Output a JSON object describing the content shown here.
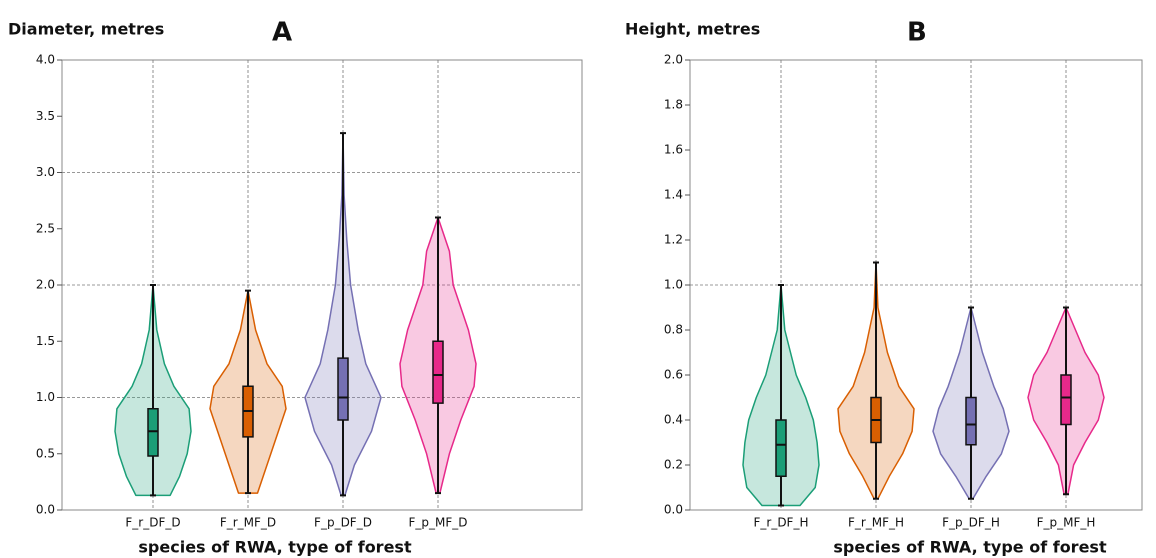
{
  "chart_data": [
    {
      "type": "violin",
      "title": "Diameter, metres",
      "panel_label": "A",
      "x_label": "species of RWA, type of forest",
      "categories": [
        "F_r_DF_D",
        "F_r_MF_D",
        "F_p_DF_D",
        "F_p_MF_D"
      ],
      "ylim": [
        0,
        4
      ],
      "yticks": [
        {
          "value": 0,
          "label": "0.0"
        },
        0.5,
        {
          "value": 1,
          "label": "1.0"
        },
        1.5,
        {
          "value": 2,
          "label": "2.0"
        },
        2.5,
        {
          "value": 3,
          "label": "3.0"
        },
        3.5,
        {
          "value": 4,
          "label": "4.0"
        }
      ],
      "ygrid": [
        1,
        2,
        3
      ],
      "groups": [
        {
          "color": "#1b9e77",
          "min": 0.13,
          "q1": 0.48,
          "median": 0.7,
          "q3": 0.9,
          "max": 2.0,
          "density_y": [
            0.13,
            0.3,
            0.5,
            0.7,
            0.9,
            1.1,
            1.3,
            1.6,
            2.0
          ],
          "density": [
            0.45,
            0.7,
            0.9,
            1.0,
            0.95,
            0.55,
            0.3,
            0.1,
            0
          ]
        },
        {
          "color": "#d95f02",
          "min": 0.15,
          "q1": 0.65,
          "median": 0.88,
          "q3": 1.1,
          "max": 1.95,
          "density_y": [
            0.15,
            0.3,
            0.5,
            0.7,
            0.9,
            1.1,
            1.3,
            1.6,
            1.95
          ],
          "density": [
            0.25,
            0.4,
            0.6,
            0.8,
            1.0,
            0.9,
            0.5,
            0.2,
            0
          ]
        },
        {
          "color": "#7570b3",
          "min": 0.13,
          "q1": 0.8,
          "median": 1.0,
          "q3": 1.35,
          "max": 3.35,
          "density_y": [
            0.13,
            0.4,
            0.7,
            1.0,
            1.3,
            1.6,
            2.0,
            2.4,
            2.8,
            3.35
          ],
          "density": [
            0.05,
            0.3,
            0.75,
            1.0,
            0.6,
            0.4,
            0.2,
            0.1,
            0.03,
            0
          ]
        },
        {
          "color": "#e7298a",
          "min": 0.15,
          "q1": 0.95,
          "median": 1.2,
          "q3": 1.5,
          "max": 2.6,
          "density_y": [
            0.15,
            0.5,
            0.8,
            1.1,
            1.3,
            1.6,
            2.0,
            2.3,
            2.6
          ],
          "density": [
            0.05,
            0.3,
            0.6,
            0.95,
            1.0,
            0.8,
            0.4,
            0.3,
            0
          ]
        }
      ]
    },
    {
      "type": "violin",
      "title": "Height, metres",
      "panel_label": "B",
      "x_label": "species of RWA, type of forest",
      "categories": [
        "F_r_DF_H",
        "F_r_MF_H",
        "F_p_DF_H",
        "F_p_MF_H"
      ],
      "ylim": [
        0,
        2
      ],
      "yticks": [
        {
          "value": 0,
          "label": "0.0"
        },
        0.2,
        0.4,
        0.6,
        0.8,
        {
          "value": 1,
          "label": "1.0"
        },
        1.2,
        1.4,
        1.6,
        1.8,
        {
          "value": 2,
          "label": "2.0"
        }
      ],
      "ygrid": [
        1
      ],
      "groups": [
        {
          "color": "#1b9e77",
          "min": 0.02,
          "q1": 0.15,
          "median": 0.29,
          "q3": 0.4,
          "max": 1.0,
          "density_y": [
            0.02,
            0.1,
            0.2,
            0.3,
            0.4,
            0.5,
            0.6,
            0.8,
            1.0
          ],
          "density": [
            0.5,
            0.9,
            1.0,
            0.95,
            0.85,
            0.65,
            0.4,
            0.1,
            0
          ]
        },
        {
          "color": "#d95f02",
          "min": 0.05,
          "q1": 0.3,
          "median": 0.4,
          "q3": 0.5,
          "max": 1.1,
          "density_y": [
            0.05,
            0.15,
            0.25,
            0.35,
            0.45,
            0.55,
            0.7,
            0.9,
            1.1
          ],
          "density": [
            0.05,
            0.35,
            0.7,
            0.95,
            1.0,
            0.6,
            0.3,
            0.05,
            0
          ]
        },
        {
          "color": "#7570b3",
          "min": 0.05,
          "q1": 0.29,
          "median": 0.38,
          "q3": 0.5,
          "max": 0.9,
          "density_y": [
            0.05,
            0.15,
            0.25,
            0.35,
            0.45,
            0.55,
            0.7,
            0.9
          ],
          "density": [
            0.05,
            0.4,
            0.8,
            1.0,
            0.85,
            0.6,
            0.3,
            0
          ]
        },
        {
          "color": "#e7298a",
          "min": 0.07,
          "q1": 0.38,
          "median": 0.5,
          "q3": 0.6,
          "max": 0.9,
          "density_y": [
            0.07,
            0.2,
            0.3,
            0.4,
            0.5,
            0.6,
            0.7,
            0.8,
            0.9
          ],
          "density": [
            0.05,
            0.2,
            0.5,
            0.85,
            1.0,
            0.85,
            0.5,
            0.25,
            0
          ]
        }
      ]
    }
  ]
}
